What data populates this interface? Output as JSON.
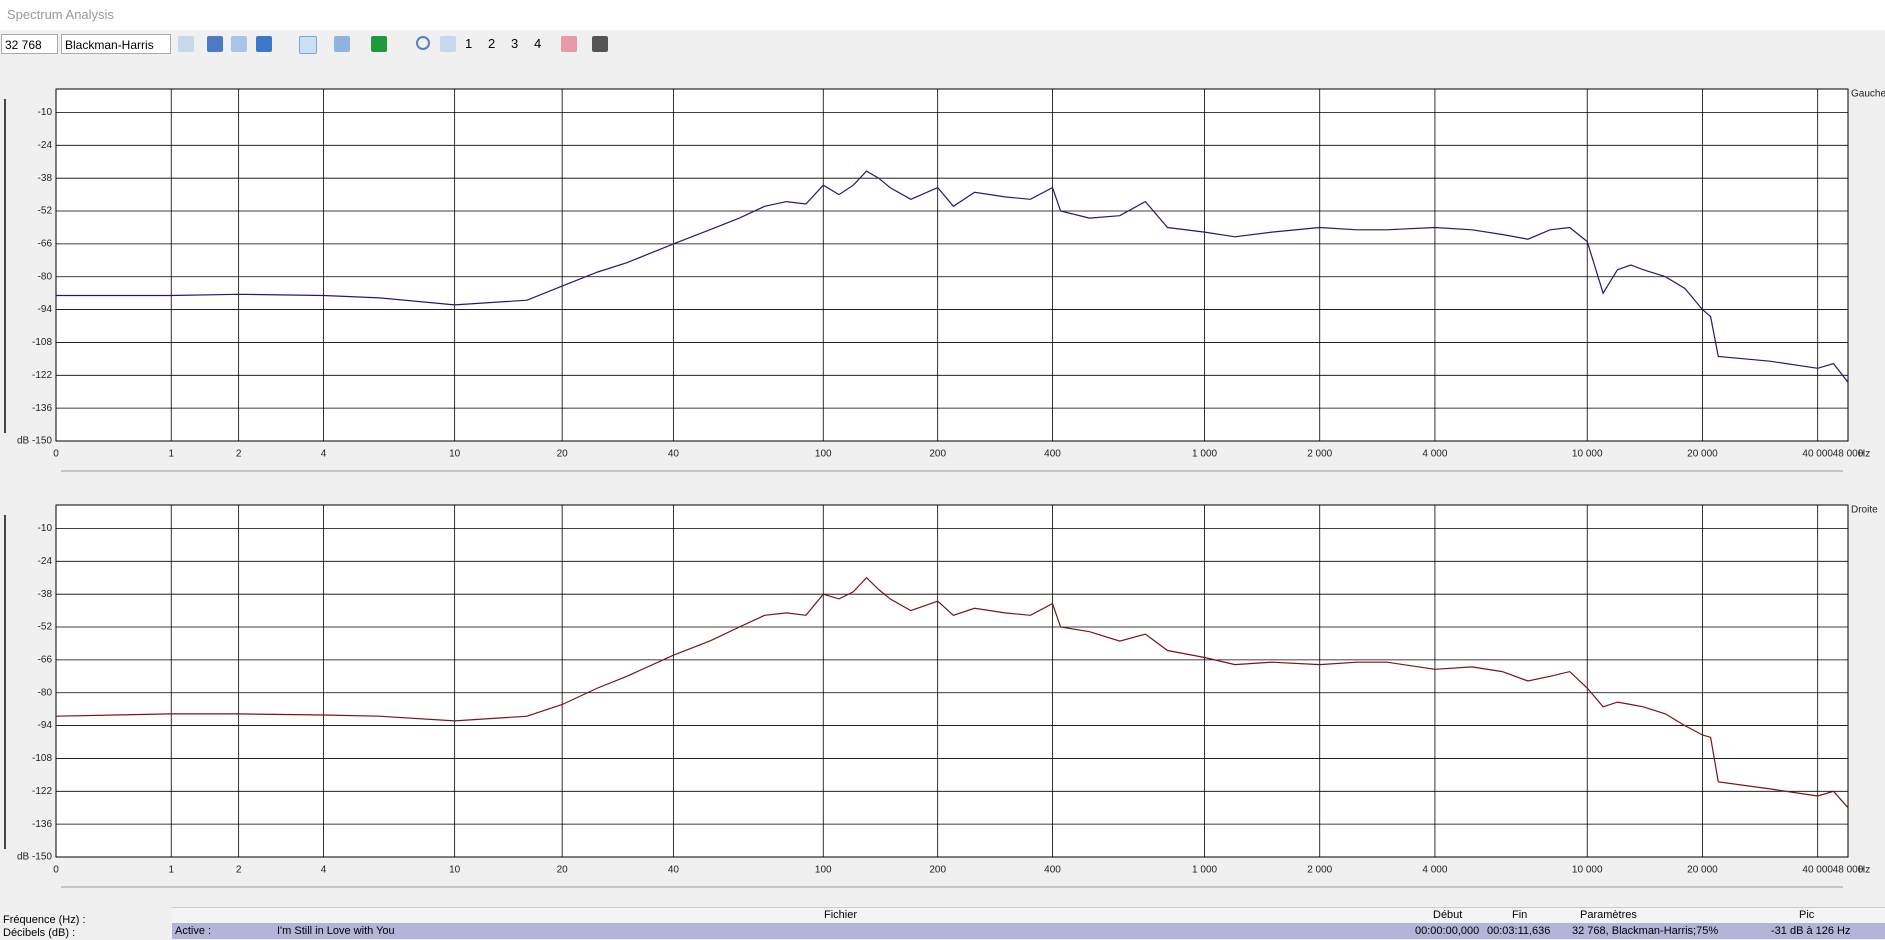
{
  "window": {
    "title": "Spectrum Analysis"
  },
  "toolbar": {
    "fft_size": "32 768",
    "window_function": "Blackman-Harris",
    "buttons": [
      "1",
      "2",
      "3",
      "4"
    ]
  },
  "chart_data": [
    {
      "type": "line",
      "channel_label": "Gauche",
      "x_label": "Hz",
      "xscale": "log",
      "grid": true,
      "x": [
        0,
        1,
        2,
        4,
        6,
        10,
        16,
        20,
        25,
        30,
        40,
        50,
        60,
        70,
        80,
        90,
        100,
        110,
        120,
        130,
        140,
        150,
        170,
        200,
        220,
        250,
        300,
        350,
        400,
        420,
        500,
        600,
        700,
        800,
        1000,
        1200,
        1500,
        2000,
        2500,
        3000,
        4000,
        5000,
        6000,
        7000,
        8000,
        9000,
        10000,
        11000,
        12000,
        13000,
        14000,
        16000,
        18000,
        20000,
        21000,
        22000,
        30000,
        40000,
        44000,
        48000
      ],
      "series": [
        {
          "name": "Gauche",
          "color": "#1c1c78",
          "values": [
            -88,
            -88,
            -87.5,
            -88,
            -89,
            -92,
            -90,
            -84,
            -78,
            -74,
            -66,
            -60,
            -55,
            -50,
            -48,
            -49,
            -41,
            -45,
            -41,
            -35,
            -38,
            -42,
            -47,
            -42,
            -50,
            -44,
            -46,
            -47,
            -42,
            -52,
            -55,
            -54,
            -48,
            -59,
            -61,
            -63,
            -61,
            -59,
            -60,
            -60,
            -59,
            -60,
            -62,
            -64,
            -60,
            -59,
            -65,
            -87,
            -77,
            -75,
            -77,
            -80,
            -85,
            -94,
            -97,
            -114,
            -116,
            -119,
            -117,
            -125
          ]
        }
      ],
      "xlim": [
        0,
        48000
      ],
      "xticks": [
        0,
        1,
        2,
        4,
        10,
        20,
        40,
        100,
        200,
        400,
        {
          "value": 1000,
          "label": "1 000"
        },
        {
          "value": 2000,
          "label": "2 000"
        },
        {
          "value": 4000,
          "label": "4 000"
        },
        {
          "value": 10000,
          "label": "10 000"
        },
        {
          "value": 20000,
          "label": "20 000"
        },
        {
          "value": 40000,
          "label": "40 000"
        },
        {
          "value": 48000,
          "label": "48 000"
        }
      ],
      "ylim": [
        -150,
        0
      ],
      "yticks": [
        -10,
        -24,
        -38,
        -52,
        -66,
        -80,
        -94,
        -108,
        -122,
        -136,
        {
          "value": -150,
          "label": "dB -150"
        }
      ]
    },
    {
      "type": "line",
      "channel_label": "Droite",
      "x_label": "Hz",
      "xscale": "log",
      "grid": true,
      "x": [
        0,
        1,
        2,
        4,
        6,
        10,
        16,
        20,
        25,
        30,
        40,
        50,
        60,
        70,
        80,
        90,
        100,
        110,
        120,
        130,
        140,
        150,
        170,
        200,
        220,
        250,
        300,
        350,
        400,
        420,
        500,
        600,
        700,
        800,
        1000,
        1200,
        1500,
        2000,
        2500,
        3000,
        4000,
        5000,
        6000,
        7000,
        8000,
        9000,
        10000,
        11000,
        12000,
        13000,
        14000,
        16000,
        18000,
        20000,
        21000,
        22000,
        30000,
        40000,
        44000,
        48000
      ],
      "series": [
        {
          "name": "Droite",
          "color": "#7a1414",
          "values": [
            -90,
            -89,
            -89,
            -89.5,
            -90,
            -92,
            -90,
            -85,
            -78,
            -73,
            -64,
            -58,
            -52,
            -47,
            -46,
            -47,
            -38,
            -40,
            -37,
            -31,
            -36,
            -40,
            -45,
            -41,
            -47,
            -44,
            -46,
            -47,
            -42,
            -52,
            -54,
            -58,
            -55,
            -62,
            -65,
            -68,
            -67,
            -68,
            -67,
            -67,
            -70,
            -69,
            -71,
            -75,
            -73,
            -71,
            -78,
            -86,
            -84,
            -85,
            -86,
            -89,
            -94,
            -98,
            -99,
            -118,
            -121,
            -124,
            -122,
            -129
          ]
        }
      ],
      "xlim": [
        0,
        48000
      ],
      "xticks": [
        0,
        1,
        2,
        4,
        10,
        20,
        40,
        100,
        200,
        400,
        {
          "value": 1000,
          "label": "1 000"
        },
        {
          "value": 2000,
          "label": "2 000"
        },
        {
          "value": 4000,
          "label": "4 000"
        },
        {
          "value": 10000,
          "label": "10 000"
        },
        {
          "value": 20000,
          "label": "20 000"
        },
        {
          "value": 40000,
          "label": "40 000"
        },
        {
          "value": 48000,
          "label": "48 000"
        }
      ],
      "ylim": [
        -150,
        0
      ],
      "yticks": [
        -10,
        -24,
        -38,
        -52,
        -66,
        -80,
        -94,
        -108,
        -122,
        -136,
        {
          "value": -150,
          "label": "dB -150"
        }
      ]
    }
  ],
  "status": {
    "frequency_label": "Fréquence (Hz) :",
    "decibels_label": "Décibels (dB) :",
    "headers": [
      "Fichier",
      "Début",
      "Fin",
      "Paramètres",
      "Pic"
    ],
    "row": [
      "Active :",
      "I'm Still in Love with You",
      "00:00:00,000",
      "00:03:11,636",
      "32 768, Blackman-Harris;75%",
      "-31 dB à 126 Hz"
    ]
  }
}
